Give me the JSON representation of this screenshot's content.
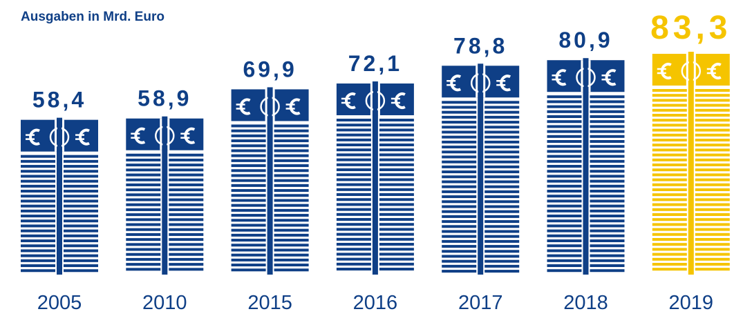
{
  "chart_data": {
    "type": "bar",
    "title": "Ausgaben in Mrd. Euro",
    "categories": [
      "2005",
      "2010",
      "2015",
      "2016",
      "2017",
      "2018",
      "2019"
    ],
    "values": [
      58.4,
      58.9,
      69.9,
      72.1,
      78.8,
      80.9,
      83.3
    ],
    "value_labels": [
      "58,4",
      "58,9",
      "69,9",
      "72,1",
      "78,8",
      "80,9",
      "83,3"
    ],
    "colors": [
      "#0f3f86",
      "#0f3f86",
      "#0f3f86",
      "#0f3f86",
      "#0f3f86",
      "#0f3f86",
      "#f5c400"
    ]
  }
}
